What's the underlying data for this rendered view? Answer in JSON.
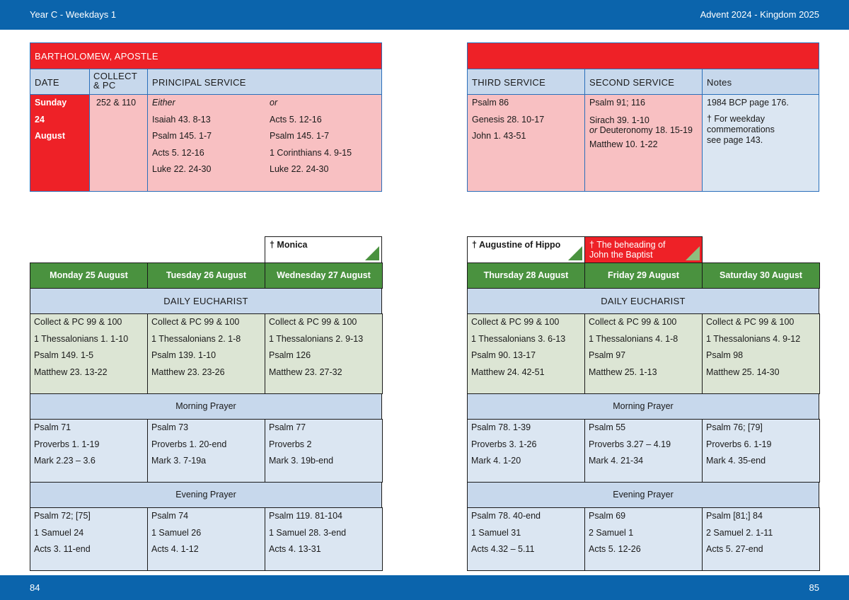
{
  "header": {
    "left": "Year C - Weekdays 1",
    "right": "Advent  2024 - Kingdom 2025"
  },
  "footer": {
    "left_page": "84",
    "right_page": "85"
  },
  "feast": {
    "title": "BARTHOLOMEW, APOSTLE",
    "col_date": "DATE",
    "col_collect": "COLLECT & PC",
    "col_principal": "PRINCIPAL SERVICE",
    "col_third": "THIRD SERVICE",
    "col_second": "SECOND SERVICE",
    "col_notes": "Notes",
    "date_lines": [
      "Sunday",
      "24",
      "August"
    ],
    "collect": "252 & 110",
    "principal_a": [
      "Either",
      "Isaiah 43. 8-13",
      "Psalm 145. 1-7",
      "Acts 5. 12-16",
      "Luke 22. 24-30"
    ],
    "principal_b": [
      "or",
      "Acts 5. 12-16",
      "Psalm 145. 1-7",
      "1 Corinthians 4. 9-15",
      "Luke 22. 24-30"
    ],
    "third": [
      "Psalm 86",
      "Genesis 28. 10-17",
      "John 1. 43-51"
    ],
    "second": [
      "Psalm 91; 116",
      "Sirach 39. 1-10",
      "Deuteronomy 18. 15-19",
      "Matthew 10. 1-22"
    ],
    "second_or": "or",
    "notes": [
      "1984 BCP page 176.",
      "† For weekday",
      "commemorations",
      "see page 143."
    ]
  },
  "commemorations": {
    "wed": "† Monica",
    "thu": "† Augustine of Hippo",
    "fri": [
      "† The beheading of",
      "John the Baptist"
    ]
  },
  "sections": {
    "eucharist": "DAILY EUCHARIST",
    "morning": "Morning Prayer",
    "evening": "Evening Prayer"
  },
  "days": [
    {
      "name": "Monday 25 August",
      "eucharist": [
        "Collect & PC 99 & 100",
        "1 Thessalonians 1. 1-10",
        "Psalm 149. 1-5",
        "Matthew 23. 13-22"
      ],
      "morning": [
        "Psalm 71",
        "Proverbs 1. 1-19",
        "Mark 2.23 – 3.6"
      ],
      "evening": [
        "Psalm 72; [75]",
        "1 Samuel 24",
        "Acts 3. 11-end"
      ]
    },
    {
      "name": "Tuesday 26 August",
      "eucharist": [
        "Collect & PC 99 & 100",
        "1 Thessalonians 2. 1-8",
        "Psalm 139. 1-10",
        "Matthew 23. 23-26"
      ],
      "morning": [
        "Psalm 73",
        "Proverbs 1. 20-end",
        "Mark 3. 7-19a"
      ],
      "evening": [
        "Psalm 74",
        "1 Samuel 26",
        "Acts 4. 1-12"
      ]
    },
    {
      "name": "Wednesday 27 August",
      "eucharist": [
        "Collect & PC 99 & 100",
        "1 Thessalonians 2. 9-13",
        "Psalm 126",
        "Matthew 23. 27-32"
      ],
      "morning": [
        "Psalm 77",
        "Proverbs 2",
        "Mark 3. 19b-end"
      ],
      "evening": [
        "Psalm 119. 81-104",
        "1 Samuel 28. 3-end",
        "Acts 4. 13-31"
      ]
    },
    {
      "name": "Thursday 28 August",
      "eucharist": [
        "Collect & PC 99 & 100",
        "1 Thessalonians 3. 6-13",
        "Psalm 90. 13-17",
        "Matthew 24. 42-51"
      ],
      "morning": [
        "Psalm 78. 1-39",
        "Proverbs 3. 1-26",
        "Mark 4. 1-20"
      ],
      "evening": [
        "Psalm 78. 40-end",
        "1 Samuel 31",
        "Acts 4.32 – 5.11"
      ]
    },
    {
      "name": "Friday 29 August",
      "eucharist": [
        "Collect & PC 99 & 100",
        "1 Thessalonians 4. 1-8",
        "Psalm 97",
        "Matthew 25. 1-13"
      ],
      "morning": [
        "Psalm 55",
        "Proverbs 3.27 – 4.19",
        "Mark 4. 21-34"
      ],
      "evening": [
        "Psalm 69",
        "2 Samuel 1",
        "Acts 5. 12-26"
      ]
    },
    {
      "name": "Saturday 30 August",
      "eucharist": [
        "Collect & PC 99 & 100",
        "1 Thessalonians 4. 9-12",
        "Psalm 98",
        "Matthew 25. 14-30"
      ],
      "morning": [
        "Psalm 76; [79]",
        "Proverbs 6. 1-19",
        "Mark 4. 35-end"
      ],
      "evening": [
        "Psalm [81;] 84",
        "2 Samuel 2. 1-11",
        "Acts 5. 27-end"
      ]
    }
  ],
  "colors": {
    "brand_blue": "#0b64ac",
    "feast_red": "#ee2127",
    "day_green": "#4a923f"
  }
}
